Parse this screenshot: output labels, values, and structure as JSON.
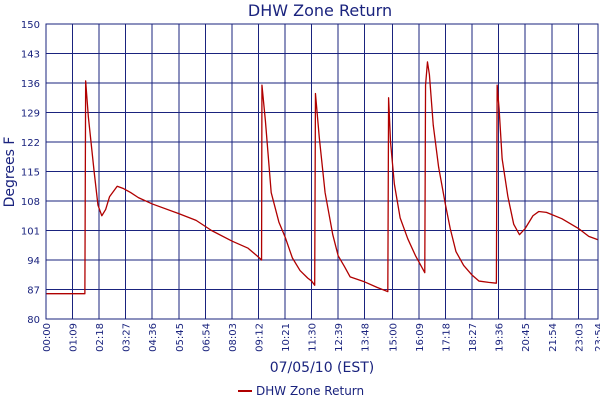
{
  "chart_data": {
    "type": "line",
    "title": "DHW Zone Return",
    "xlabel": "07/05/10 (EST)",
    "ylabel": "Degrees F",
    "ylim": [
      80,
      150
    ],
    "yticks": [
      80,
      87,
      94,
      101,
      108,
      115,
      122,
      129,
      136,
      143,
      150
    ],
    "x_tick_labels": [
      "00:00",
      "01:09",
      "02:18",
      "03:27",
      "04:36",
      "05:45",
      "06:54",
      "08:03",
      "09:12",
      "10:21",
      "11:30",
      "12:39",
      "13:48",
      "15:00",
      "16:09",
      "17:18",
      "18:27",
      "19:36",
      "20:45",
      "21:54",
      "23:03",
      "23:54"
    ],
    "grid": true,
    "legend_position": "bottom-center",
    "colors": {
      "series": "#b00000",
      "axis": "#1a237e",
      "grid": "#1a237e"
    },
    "series": [
      {
        "name": "DHW Zone Return",
        "points": [
          [
            "00:00",
            86
          ],
          [
            "01:41",
            86
          ],
          [
            "01:43",
            136.5
          ],
          [
            "01:50",
            128
          ],
          [
            "02:05",
            115
          ],
          [
            "02:15",
            107
          ],
          [
            "02:25",
            104.5
          ],
          [
            "02:35",
            106
          ],
          [
            "02:45",
            109
          ],
          [
            "03:05",
            111.5
          ],
          [
            "03:20",
            111
          ],
          [
            "03:40",
            110
          ],
          [
            "04:00",
            108.8
          ],
          [
            "04:36",
            107.3
          ],
          [
            "05:45",
            105
          ],
          [
            "06:30",
            103.4
          ],
          [
            "07:10",
            101
          ],
          [
            "08:03",
            98.5
          ],
          [
            "08:45",
            96.8
          ],
          [
            "09:08",
            95
          ],
          [
            "09:20",
            94
          ],
          [
            "09:21",
            135.5
          ],
          [
            "09:30",
            127
          ],
          [
            "09:45",
            110
          ],
          [
            "10:05",
            103
          ],
          [
            "10:21",
            99.5
          ],
          [
            "10:40",
            94.5
          ],
          [
            "11:00",
            91.5
          ],
          [
            "11:20",
            89.7
          ],
          [
            "11:30",
            89
          ],
          [
            "11:38",
            88
          ],
          [
            "11:40",
            133.5
          ],
          [
            "11:50",
            123
          ],
          [
            "12:05",
            110
          ],
          [
            "12:25",
            100
          ],
          [
            "12:39",
            95
          ],
          [
            "12:55",
            92.5
          ],
          [
            "13:10",
            90
          ],
          [
            "13:48",
            88.8
          ],
          [
            "14:20",
            87.5
          ],
          [
            "14:48",
            86.5
          ],
          [
            "14:50",
            132.5
          ],
          [
            "14:55",
            122
          ],
          [
            "15:05",
            112
          ],
          [
            "15:20",
            104
          ],
          [
            "15:40",
            99
          ],
          [
            "16:00",
            95
          ],
          [
            "16:09",
            93.5
          ],
          [
            "16:24",
            91
          ],
          [
            "16:26",
            135.5
          ],
          [
            "16:31",
            141
          ],
          [
            "16:36",
            138
          ],
          [
            "16:46",
            126
          ],
          [
            "17:00",
            116
          ],
          [
            "17:18",
            107
          ],
          [
            "17:30",
            101.5
          ],
          [
            "17:45",
            96
          ],
          [
            "18:05",
            92.7
          ],
          [
            "18:27",
            90.4
          ],
          [
            "18:45",
            89
          ],
          [
            "19:10",
            88.7
          ],
          [
            "19:30",
            88.5
          ],
          [
            "19:32",
            135.5
          ],
          [
            "19:37",
            130
          ],
          [
            "19:45",
            118
          ],
          [
            "20:00",
            109
          ],
          [
            "20:15",
            102.5
          ],
          [
            "20:30",
            100
          ],
          [
            "20:45",
            101.5
          ],
          [
            "21:05",
            104.5
          ],
          [
            "21:20",
            105.5
          ],
          [
            "21:40",
            105.3
          ],
          [
            "22:20",
            103.8
          ],
          [
            "23:03",
            101.5
          ],
          [
            "23:30",
            99.6
          ],
          [
            "23:54",
            98.8
          ]
        ]
      }
    ]
  }
}
